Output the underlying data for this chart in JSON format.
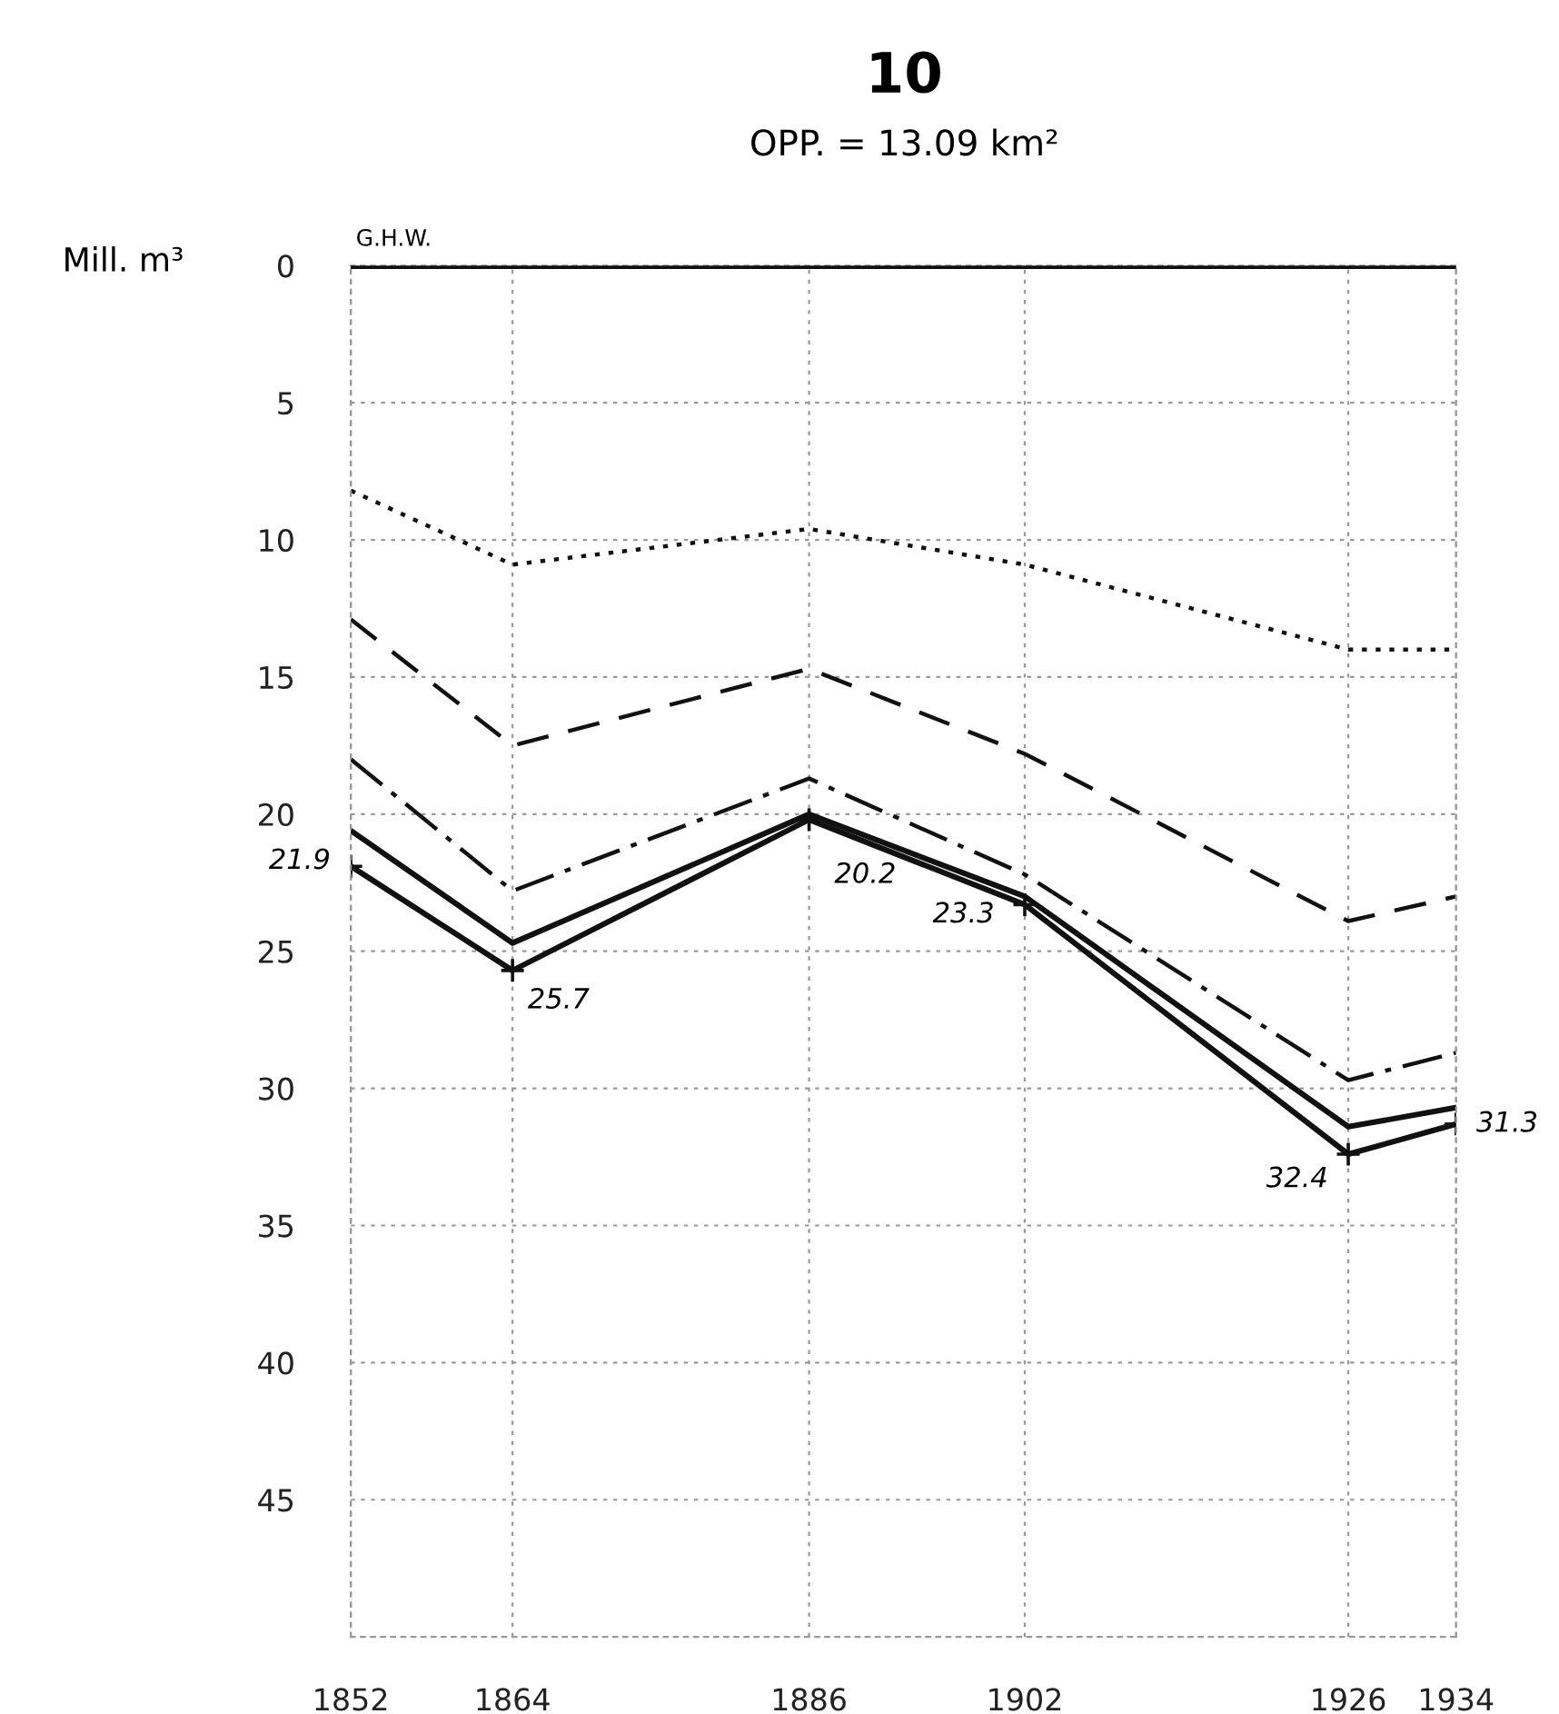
{
  "chart_data": {
    "type": "line",
    "title": "10",
    "subtitle": "OPP. = 13.09 km²",
    "ylabel": "Mill. m³",
    "x": [
      1852,
      1864,
      1886,
      1902,
      1926,
      1934
    ],
    "xlim": [
      1852,
      1934
    ],
    "xticks": [
      1852,
      1864,
      1886,
      1902,
      1926,
      1934
    ],
    "ylim": [
      50,
      0
    ],
    "yticks": [
      0,
      5,
      10,
      15,
      20,
      25,
      30,
      35,
      40,
      45
    ],
    "grid": true,
    "ref_lines": [
      {
        "axis": "y",
        "value": 0,
        "label": "G.H.W.",
        "color": "#111111",
        "line_style": "solid"
      }
    ],
    "series": [
      {
        "color": "#111111",
        "line_style": "dotted",
        "marker": "none",
        "values": [
          8.2,
          10.9,
          9.6,
          10.9,
          14.0,
          14.0
        ]
      },
      {
        "color": "#111111",
        "line_style": "dashed",
        "marker": "none",
        "values": [
          12.9,
          17.5,
          14.7,
          17.8,
          23.9,
          23.0
        ]
      },
      {
        "color": "#111111",
        "line_style": "dashdot",
        "marker": "none",
        "values": [
          18.0,
          22.8,
          18.7,
          22.2,
          29.7,
          28.7
        ]
      },
      {
        "color": "#111111",
        "line_style": "solid",
        "marker": "none",
        "values": [
          20.6,
          24.7,
          20.0,
          23.0,
          31.4,
          30.7
        ]
      },
      {
        "color": "#111111",
        "line_style": "solid",
        "marker": "cross",
        "data_labels": true,
        "values": [
          21.9,
          25.7,
          20.2,
          23.3,
          32.4,
          31.3
        ]
      }
    ]
  }
}
